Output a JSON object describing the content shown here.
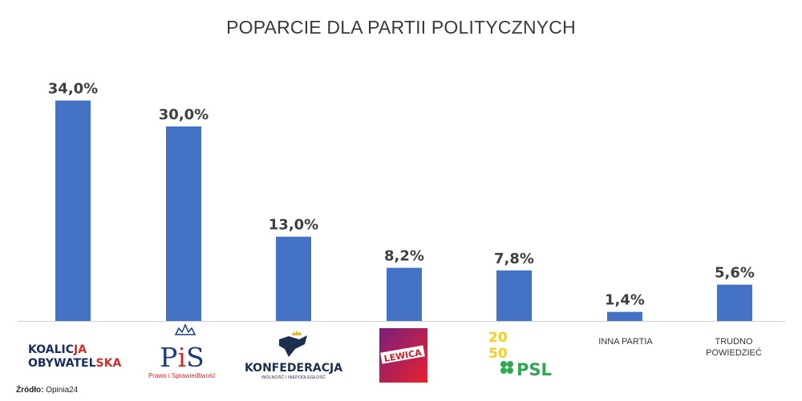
{
  "chart_data": {
    "type": "bar",
    "title": "POPARCIE DLA PARTII POLITYCZNYCH",
    "categories": [
      "KOALICJA OBYWATELSKA",
      "PiS Prawo i Sprawiedliwość",
      "KONFEDERACJA WOLNOŚĆ I NIEPODLEGŁOŚĆ",
      "LEWICA",
      "2050 PSL",
      "INNA PARTIA",
      "TRUDNO POWIEDZIEĆ"
    ],
    "values": [
      34.0,
      30.0,
      13.0,
      8.2,
      7.8,
      1.4,
      5.6
    ],
    "value_labels": [
      "34,0%",
      "30,0%",
      "13,0%",
      "8,2%",
      "7,8%",
      "1,4%",
      "5,6%"
    ],
    "ylim": [
      0,
      36
    ],
    "bar_color": "#4472c4",
    "grid": false,
    "xlabel": "",
    "ylabel": ""
  },
  "logos": {
    "ko_line1_a": "KOALIC",
    "ko_line1_b": "JA",
    "ko_line2_a": "OBYWATEL",
    "ko_line2_b": "SKA",
    "pis_main_a": "P",
    "pis_main_b": "i",
    "pis_main_c": "S",
    "pis_sub": "Prawo i Sprawiedliwość",
    "konf_main": "KONFEDERACJA",
    "konf_sub": "WOLNOŚĆ I NIEPODLEGŁOŚĆ",
    "lewica": "LEWICA",
    "t2050_a": "20",
    "t2050_b": "50",
    "psl": "PSL",
    "inna": "INNA PARTIA",
    "trudno_1": "TRUDNO",
    "trudno_2": "POWIEDZIEĆ"
  },
  "source": {
    "label": "Źródło:",
    "value": "Opinia24"
  },
  "colors": {
    "ko_navy": "#1c2d5e",
    "ko_red": "#d42b2b",
    "pis_navy": "#1d3c78",
    "pis_red": "#d5262a",
    "konf_navy": "#1c2f4d",
    "lewica_left": "#7a1f7e",
    "lewica_right": "#e8212c",
    "y2050": "#f3cf21",
    "psl_green": "#2fa84f"
  }
}
